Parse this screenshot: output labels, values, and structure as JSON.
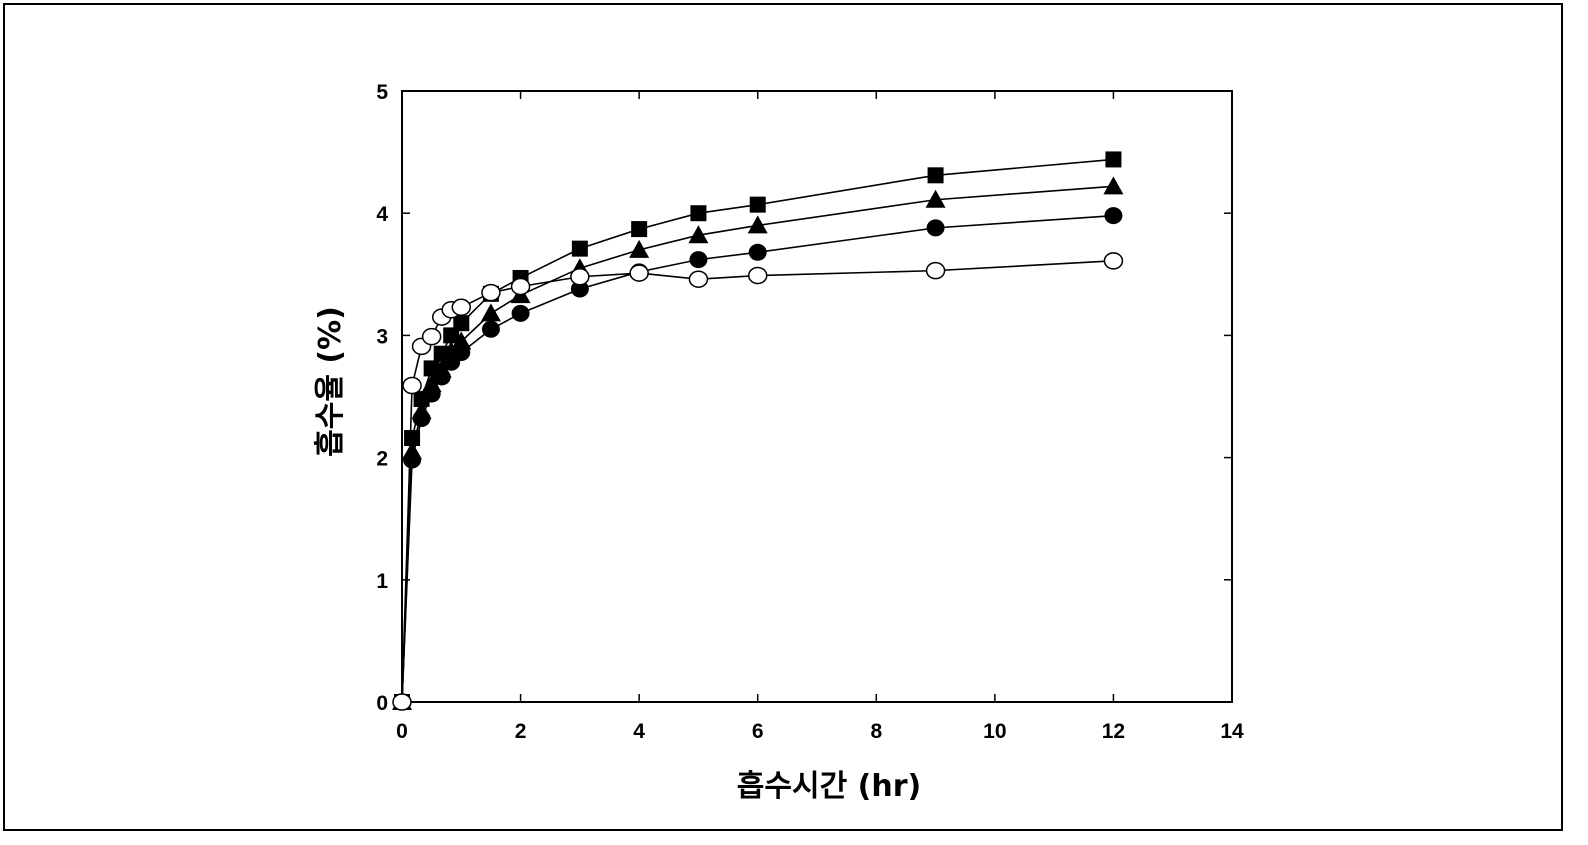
{
  "chart_data": {
    "type": "line",
    "title": "",
    "xlabel": "흡수시간 (hr)",
    "ylabel": "흡수율 (%)",
    "xlim": [
      0,
      14
    ],
    "ylim": [
      0,
      5
    ],
    "xticks": [
      0,
      2,
      4,
      6,
      8,
      10,
      12,
      14
    ],
    "yticks": [
      0,
      1,
      2,
      3,
      4,
      5
    ],
    "grid": false,
    "legend": "none",
    "series": [
      {
        "marker": "square-filled",
        "color": "#000000",
        "points": [
          [
            0,
            0
          ],
          [
            0.17,
            2.16
          ],
          [
            0.33,
            2.48
          ],
          [
            0.5,
            2.73
          ],
          [
            0.67,
            2.85
          ],
          [
            0.83,
            3.0
          ],
          [
            1.0,
            3.1
          ],
          [
            1.5,
            3.34
          ],
          [
            2,
            3.47
          ],
          [
            3,
            3.71
          ],
          [
            4,
            3.87
          ],
          [
            5,
            4.0
          ],
          [
            6,
            4.07
          ],
          [
            9,
            4.31
          ],
          [
            12,
            4.44
          ]
        ]
      },
      {
        "marker": "triangle-filled",
        "color": "#000000",
        "points": [
          [
            0,
            0
          ],
          [
            0.17,
            2.05
          ],
          [
            0.33,
            2.38
          ],
          [
            0.5,
            2.6
          ],
          [
            0.67,
            2.72
          ],
          [
            0.83,
            2.87
          ],
          [
            1.0,
            2.95
          ],
          [
            1.5,
            3.18
          ],
          [
            2,
            3.33
          ],
          [
            3,
            3.55
          ],
          [
            4,
            3.7
          ],
          [
            5,
            3.82
          ],
          [
            6,
            3.9
          ],
          [
            9,
            4.11
          ],
          [
            12,
            4.22
          ]
        ]
      },
      {
        "marker": "circle-filled",
        "color": "#000000",
        "points": [
          [
            0,
            0
          ],
          [
            0.17,
            1.98
          ],
          [
            0.33,
            2.32
          ],
          [
            0.5,
            2.52
          ],
          [
            0.67,
            2.66
          ],
          [
            0.83,
            2.78
          ],
          [
            1.0,
            2.86
          ],
          [
            1.5,
            3.05
          ],
          [
            2,
            3.18
          ],
          [
            3,
            3.38
          ],
          [
            4,
            3.52
          ],
          [
            5,
            3.62
          ],
          [
            6,
            3.68
          ],
          [
            9,
            3.88
          ],
          [
            12,
            3.98
          ]
        ]
      },
      {
        "marker": "circle-open",
        "color": "#000000",
        "points": [
          [
            0,
            0
          ],
          [
            0.17,
            2.59
          ],
          [
            0.33,
            2.91
          ],
          [
            0.5,
            2.99
          ],
          [
            0.67,
            3.15
          ],
          [
            0.83,
            3.21
          ],
          [
            1.0,
            3.23
          ],
          [
            1.5,
            3.35
          ],
          [
            2,
            3.4
          ],
          [
            3,
            3.48
          ],
          [
            4,
            3.51
          ],
          [
            5,
            3.46
          ],
          [
            6,
            3.49
          ],
          [
            9,
            3.53
          ],
          [
            12,
            3.61
          ]
        ]
      }
    ]
  }
}
